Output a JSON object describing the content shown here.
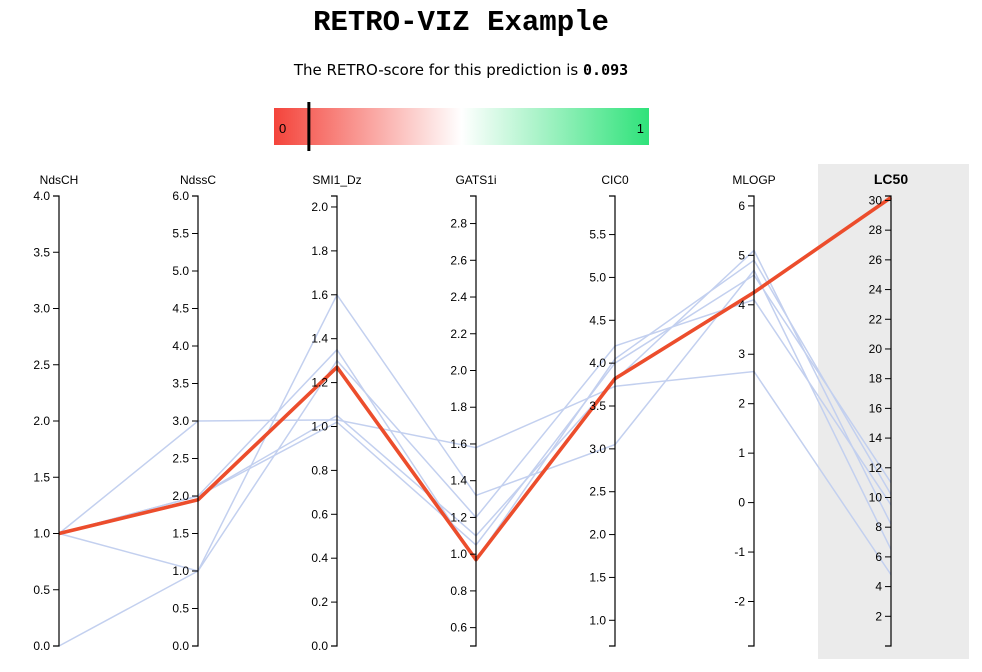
{
  "header": {
    "title": "RETRO-VIZ Example",
    "score_prefix": "The RETRO-score for this prediction is",
    "score_value": "0.093"
  },
  "colors": {
    "scale_low": "#f4443b",
    "scale_mid": "#ffffff",
    "scale_high": "#2fe27a",
    "focus_line": "#ec4d2c",
    "reference_lines": "#c3d0ef",
    "target_background": "#ebebeb"
  },
  "score_scale": {
    "min_label": "0",
    "max_label": "1",
    "marker_value": 0.093
  },
  "chart_data": {
    "type": "parallel-coordinates",
    "axes": [
      {
        "name": "NdsCH",
        "domain": [
          0,
          4
        ],
        "ticks": [
          0,
          0.5,
          1,
          1.5,
          2,
          2.5,
          3,
          3.5,
          4
        ],
        "tick_labels": [
          "0.0",
          "0.5",
          "1.0",
          "1.5",
          "2.0",
          "2.5",
          "3.0",
          "3.5",
          "4.0"
        ]
      },
      {
        "name": "NdssC",
        "domain": [
          0,
          6
        ],
        "ticks": [
          0,
          0.5,
          1,
          1.5,
          2,
          2.5,
          3,
          3.5,
          4,
          4.5,
          5,
          5.5,
          6
        ],
        "tick_labels": [
          "0.0",
          "0.5",
          "1.0",
          "1.5",
          "2.0",
          "2.5",
          "3.0",
          "3.5",
          "4.0",
          "4.5",
          "5.0",
          "5.5",
          "6.0"
        ]
      },
      {
        "name": "SMI1_Dz",
        "domain": [
          0,
          2.05
        ],
        "ticks": [
          0,
          0.2,
          0.4,
          0.6,
          0.8,
          1,
          1.2,
          1.4,
          1.6,
          1.8,
          2
        ],
        "tick_labels": [
          "0.0",
          "0.2",
          "0.4",
          "0.6",
          "0.8",
          "1.0",
          "1.2",
          "1.4",
          "1.6",
          "1.8",
          "2.0"
        ]
      },
      {
        "name": "GATS1i",
        "domain": [
          0.5,
          2.95
        ],
        "ticks": [
          0.6,
          0.8,
          1,
          1.2,
          1.4,
          1.6,
          1.8,
          2,
          2.2,
          2.4,
          2.6,
          2.8
        ],
        "tick_labels": [
          "0.6",
          "0.8",
          "1.0",
          "1.2",
          "1.4",
          "1.6",
          "1.8",
          "2.0",
          "2.2",
          "2.4",
          "2.6",
          "2.8"
        ]
      },
      {
        "name": "CIC0",
        "domain": [
          0.7,
          5.95
        ],
        "ticks": [
          1,
          1.5,
          2,
          2.5,
          3,
          3.5,
          4,
          4.5,
          5,
          5.5
        ],
        "tick_labels": [
          "1.0",
          "1.5",
          "2.0",
          "2.5",
          "3.0",
          "3.5",
          "4.0",
          "4.5",
          "5.0",
          "5.5"
        ]
      },
      {
        "name": "MLOGP",
        "domain": [
          -2.9,
          6.2
        ],
        "ticks": [
          -2,
          -1,
          0,
          1,
          2,
          3,
          4,
          5,
          6
        ],
        "tick_labels": [
          "-2",
          "-1",
          "0",
          "1",
          "2",
          "3",
          "4",
          "5",
          "6"
        ]
      },
      {
        "name": "LC50",
        "domain": [
          0,
          30.3
        ],
        "ticks": [
          2,
          4,
          6,
          8,
          10,
          12,
          14,
          16,
          18,
          20,
          22,
          24,
          26,
          28,
          30
        ],
        "tick_labels": [
          "2",
          "4",
          "6",
          "8",
          "10",
          "12",
          "14",
          "16",
          "18",
          "20",
          "22",
          "24",
          "26",
          "28",
          "30"
        ],
        "target": true
      }
    ],
    "reference_lines": [
      {
        "values": [
          1,
          2,
          1.05,
          1.1,
          3.8,
          5.1,
          8.2
        ]
      },
      {
        "values": [
          1,
          2,
          1.35,
          0.97,
          4.05,
          4.9,
          10.2
        ]
      },
      {
        "values": [
          1,
          3,
          1.03,
          1.58,
          3.73,
          2.65,
          4.8
        ]
      },
      {
        "values": [
          0,
          1,
          1.6,
          1.32,
          3.05,
          4.7,
          6.5
        ]
      },
      {
        "values": [
          1,
          1,
          1.3,
          1.2,
          4.2,
          4.1,
          9.5
        ]
      },
      {
        "values": [
          1,
          2,
          1.02,
          1.05,
          4.0,
          4.6,
          11
        ]
      }
    ],
    "focus_line": {
      "values": [
        1,
        1.95,
        1.27,
        0.97,
        3.82,
        4.25,
        30.2
      ]
    }
  }
}
